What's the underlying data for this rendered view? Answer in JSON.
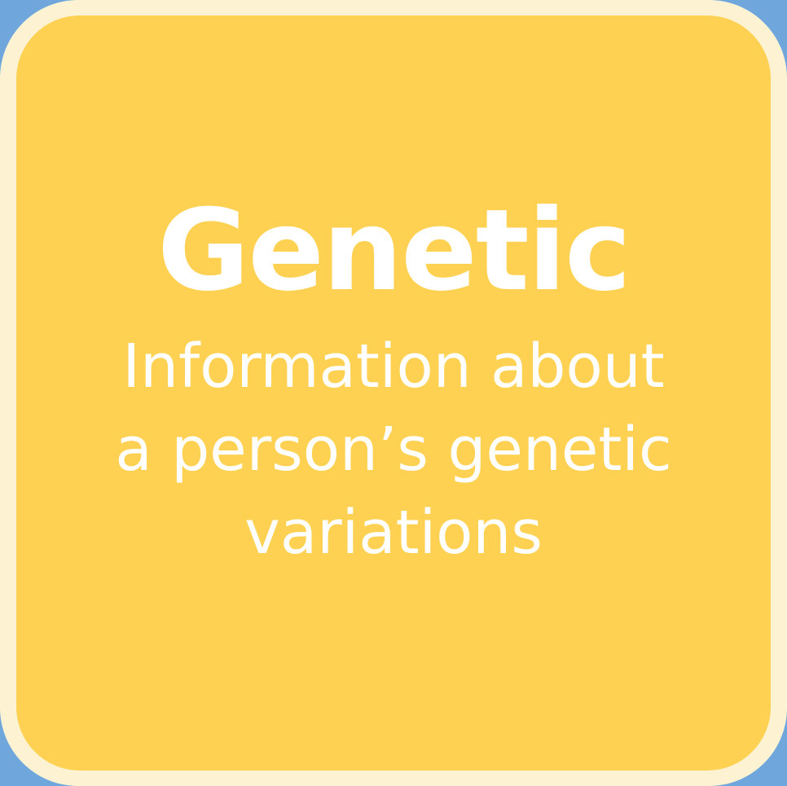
{
  "card": {
    "title": "Genetic",
    "description_lines": [
      "Information about",
      "a person’s genetic",
      "variations"
    ]
  },
  "colors": {
    "background": "#6fa7dc",
    "border": "#fdf3d3",
    "card_fill": "#ffd152",
    "text": "#ffffff"
  }
}
